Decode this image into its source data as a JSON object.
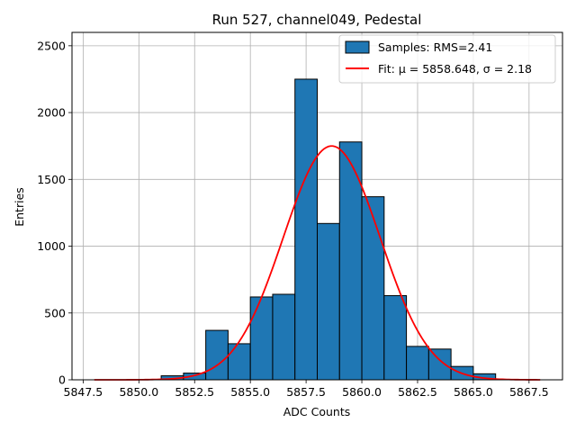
{
  "chart_data": {
    "type": "bar",
    "title": "Run 527, channel049, Pedestal",
    "xlabel": "ADC Counts",
    "ylabel": "Entries",
    "xlim": [
      5847.0,
      5869.0
    ],
    "ylim": [
      0,
      2600
    ],
    "xticks": [
      5847.5,
      5850.0,
      5852.5,
      5855.0,
      5857.5,
      5860.0,
      5862.5,
      5865.0,
      5867.5
    ],
    "xtick_labels": [
      "5847.5",
      "5850.0",
      "5852.5",
      "5855.0",
      "5857.5",
      "5860.0",
      "5862.5",
      "5865.0",
      "5867.5"
    ],
    "yticks": [
      0,
      500,
      1000,
      1500,
      2000,
      2500
    ],
    "ytick_labels": [
      "0",
      "500",
      "1000",
      "1500",
      "2000",
      "2500"
    ],
    "grid": true,
    "legend_position": "top-right",
    "bins": {
      "edges": [
        5851.0,
        5852.0,
        5853.0,
        5854.0,
        5855.0,
        5856.0,
        5857.0,
        5858.0,
        5859.0,
        5860.0,
        5861.0,
        5862.0,
        5863.0,
        5864.0,
        5865.0,
        5866.0
      ],
      "counts": [
        30,
        50,
        370,
        270,
        620,
        640,
        2250,
        1170,
        1780,
        1370,
        630,
        250,
        230,
        100,
        45
      ]
    },
    "series": [
      {
        "name": "Samples: RMS=2.41",
        "kind": "histogram",
        "color": "#1f77b4"
      },
      {
        "name": "Fit: μ = 5858.648, σ = 2.18",
        "kind": "gaussian",
        "color": "#ff0000",
        "mu": 5858.648,
        "sigma": 2.18,
        "amplitude": 1750,
        "range": [
          5848.0,
          5868.0
        ]
      }
    ]
  }
}
